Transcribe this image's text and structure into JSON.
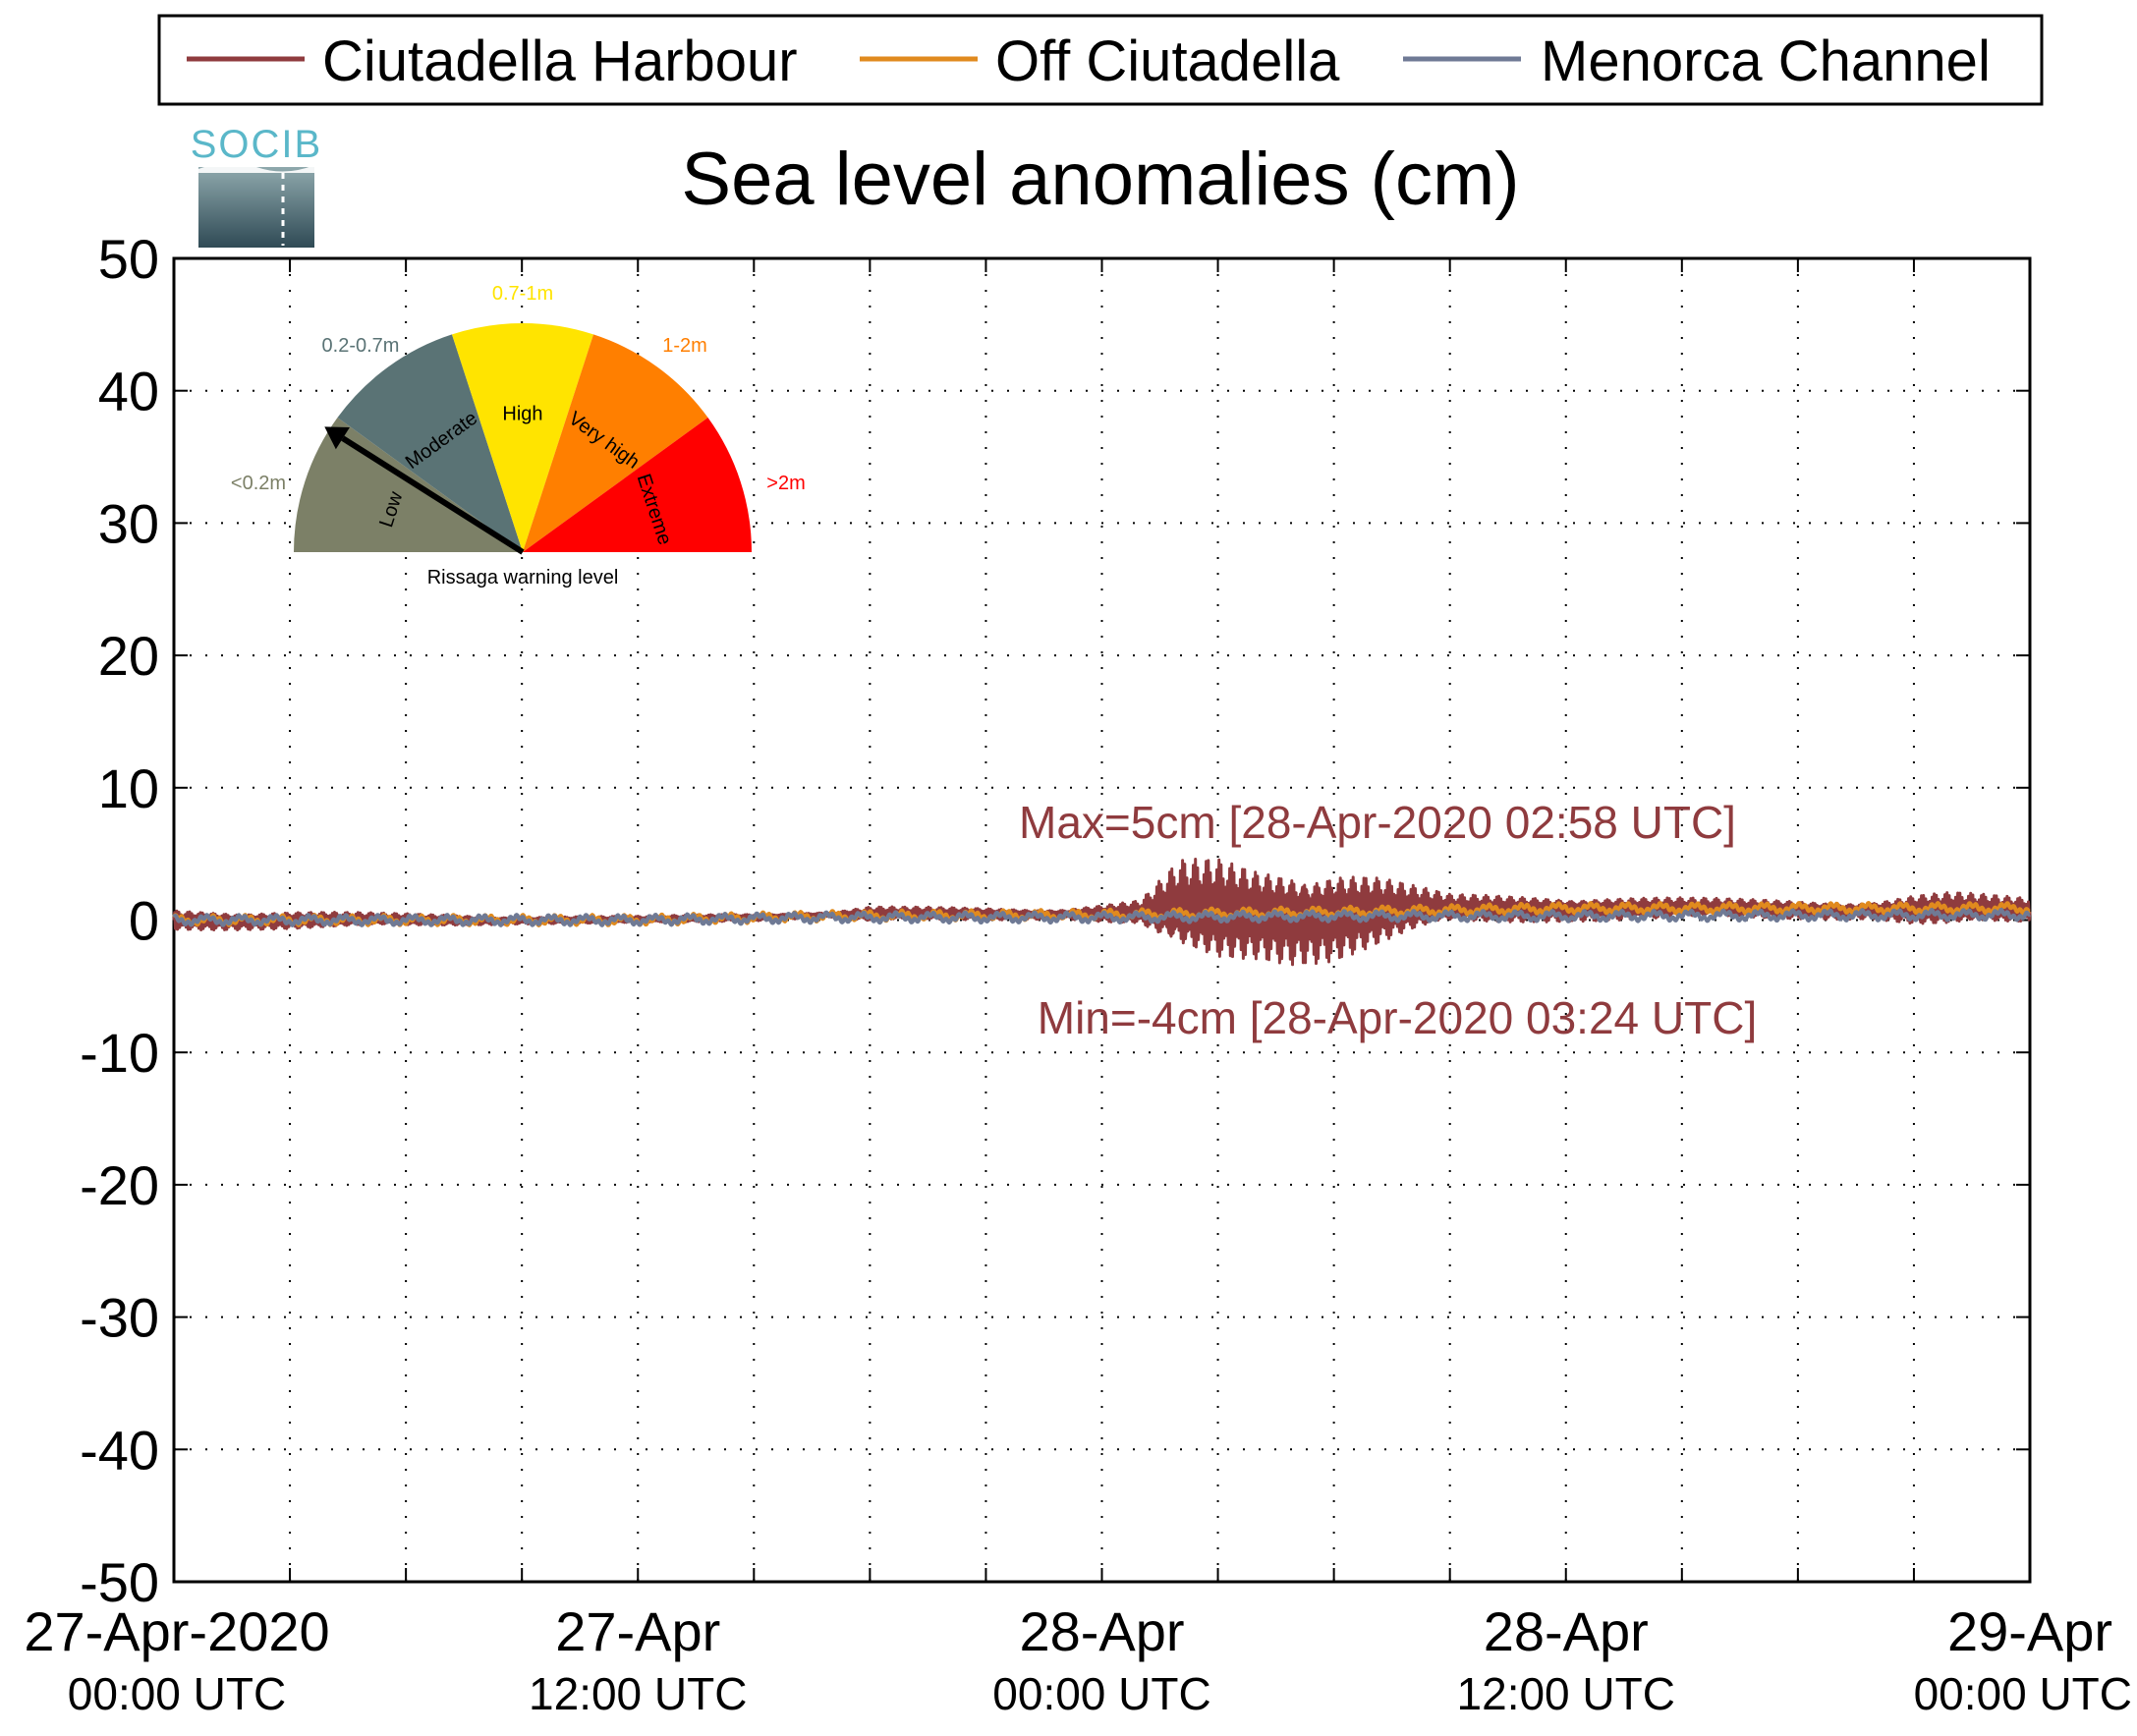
{
  "title": "Sea level anomalies (cm)",
  "logo": {
    "text": "SOCIB"
  },
  "legend": [
    {
      "name": "Ciutadella Harbour",
      "color": "#8f3b3e"
    },
    {
      "name": "Off Ciutadella",
      "color": "#e08a1e"
    },
    {
      "name": "Menorca Channel",
      "color": "#6f7a95"
    }
  ],
  "gauge": {
    "caption": "Rissaga warning level",
    "segments": [
      {
        "name": "Low",
        "range": "<0.2m",
        "color": "#7c8067"
      },
      {
        "name": "Moderate",
        "range": "0.2-0.7m",
        "color": "#5a7375"
      },
      {
        "name": "High",
        "range": "0.7-1m",
        "color": "#ffe400"
      },
      {
        "name": "Very high",
        "range": "1-2m",
        "color": "#ff7f00"
      },
      {
        "name": "Extreme",
        "range": ">2m",
        "color": "#ff0000"
      }
    ],
    "needle_level": "Low"
  },
  "chart_data": {
    "type": "line",
    "ylim": [
      -50,
      50
    ],
    "yticks": [
      50,
      40,
      30,
      20,
      10,
      0,
      -10,
      -20,
      -30,
      -40,
      -50
    ],
    "xlim_hours": [
      0,
      48
    ],
    "xticks": [
      {
        "hour": 0,
        "line1": "27-Apr-2020",
        "line2": "00:00 UTC"
      },
      {
        "hour": 12,
        "line1": "27-Apr",
        "line2": "12:00 UTC"
      },
      {
        "hour": 24,
        "line1": "28-Apr",
        "line2": "00:00 UTC"
      },
      {
        "hour": 36,
        "line1": "28-Apr",
        "line2": "12:00 UTC"
      },
      {
        "hour": 48,
        "line1": "29-Apr",
        "line2": "00:00 UTC"
      }
    ],
    "grid": true,
    "legend_position": "top",
    "series": [
      {
        "name": "Ciutadella Harbour",
        "color": "#8f3b3e",
        "note": "oscillation amplitude envelope (cm) vs hour",
        "envelope": [
          [
            0,
            0.8
          ],
          [
            3,
            0.7
          ],
          [
            6,
            0.5
          ],
          [
            9,
            0.3
          ],
          [
            12,
            0.3
          ],
          [
            15,
            0.3
          ],
          [
            17,
            0.2
          ],
          [
            18,
            0.6
          ],
          [
            21,
            0.5
          ],
          [
            23,
            0.4
          ],
          [
            25,
            1.0
          ],
          [
            26,
            4.0
          ],
          [
            27,
            4.3
          ],
          [
            28,
            3.8
          ],
          [
            29,
            4.0
          ],
          [
            30,
            3.8
          ],
          [
            31,
            3.0
          ],
          [
            32,
            2.0
          ],
          [
            33,
            1.2
          ],
          [
            36,
            1.0
          ],
          [
            40,
            0.8
          ],
          [
            44,
            0.7
          ],
          [
            45,
            1.2
          ],
          [
            46,
            1.4
          ],
          [
            48,
            1.0
          ]
        ],
        "baseline": [
          [
            0,
            0
          ],
          [
            12,
            0
          ],
          [
            17,
            0.4
          ],
          [
            24,
            0.5
          ],
          [
            30,
            0.6
          ],
          [
            36,
            0.9
          ],
          [
            48,
            0.7
          ]
        ]
      },
      {
        "name": "Off Ciutadella",
        "color": "#e08a1e",
        "baseline": [
          [
            0,
            0
          ],
          [
            12,
            0
          ],
          [
            17,
            0.3
          ],
          [
            24,
            0.4
          ],
          [
            30,
            0.6
          ],
          [
            36,
            0.9
          ],
          [
            48,
            0.9
          ]
        ]
      },
      {
        "name": "Menorca Channel",
        "color": "#6f7a95",
        "baseline": [
          [
            0,
            0
          ],
          [
            12,
            0
          ],
          [
            17,
            0.2
          ],
          [
            24,
            0.2
          ],
          [
            30,
            0.3
          ],
          [
            36,
            0.3
          ],
          [
            48,
            0.4
          ]
        ]
      }
    ],
    "annotations": [
      {
        "text": "Max=5cm [28-Apr-2020 02:58 UTC]"
      },
      {
        "text": "Min=-4cm [28-Apr-2020 03:24 UTC]"
      }
    ]
  }
}
